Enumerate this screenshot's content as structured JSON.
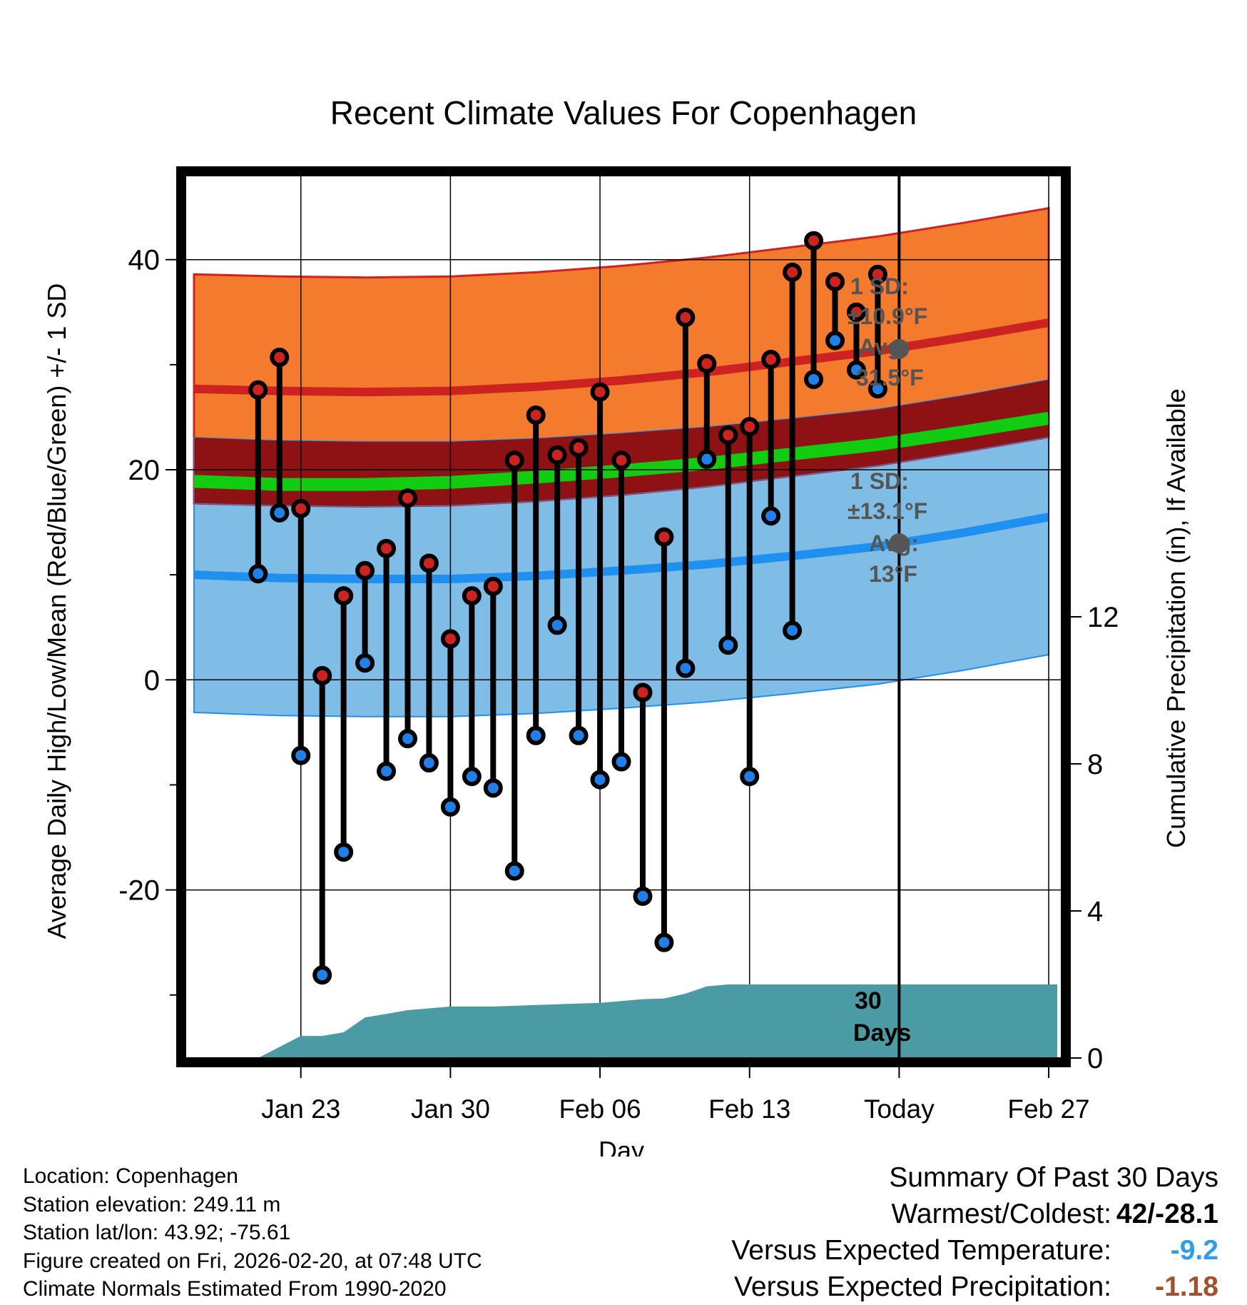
{
  "chart_data": {
    "type": "line",
    "title": "Recent Climate Values For Copenhagen",
    "xlabel": "Day",
    "ylabel": "Average Daily High/Low/Mean (Red/Blue/Green) +/- 1 SD",
    "y2label": "Cumulative Precipitation (in), If Available",
    "ylim": [
      -36,
      48
    ],
    "y2lim": [
      0,
      24
    ],
    "xlim": [
      -26.4,
      14.6
    ],
    "grid": true,
    "x_ticks": [
      {
        "x": -21,
        "label": "Jan 23"
      },
      {
        "x": -14,
        "label": "Jan 30"
      },
      {
        "x": -7,
        "label": "Feb 06"
      },
      {
        "x": 0,
        "label": "Feb 13"
      },
      {
        "x": 7,
        "label": "Today"
      },
      {
        "x": 14,
        "label": "Feb 27"
      }
    ],
    "y_ticks": [
      -20,
      0,
      20,
      40
    ],
    "y_minor_ticks": [
      -30,
      -10,
      10,
      30
    ],
    "y2_ticks": [
      0,
      4,
      8,
      12
    ],
    "today_x": 7,
    "normals": {
      "x": [
        -26,
        -22,
        -18,
        -14,
        -10,
        -6,
        -2,
        2,
        6,
        10,
        14
      ],
      "high_avg": [
        27.7,
        27.5,
        27.4,
        27.5,
        27.9,
        28.5,
        29.3,
        30.3,
        31.3,
        32.6,
        34.0
      ],
      "high_sd": 10.9,
      "low_avg": [
        10.0,
        9.7,
        9.6,
        9.6,
        9.9,
        10.4,
        11.0,
        11.8,
        12.7,
        14.0,
        15.5
      ],
      "low_sd": 13.1,
      "mean_avg": [
        18.9,
        18.6,
        18.6,
        18.8,
        19.3,
        19.9,
        20.6,
        21.5,
        22.4,
        23.6,
        24.9
      ]
    },
    "series": [
      {
        "name": "High",
        "color": "#cc2222",
        "values": [
          27.6,
          30.7,
          16.3,
          0.4,
          8.0,
          10.4,
          12.5,
          17.3,
          11.1,
          3.9,
          8.0,
          8.9,
          20.9,
          25.2,
          21.4,
          22.1,
          27.4,
          20.9,
          -1.2,
          13.6,
          34.5,
          30.1,
          23.3,
          24.1,
          30.5,
          38.8,
          41.8,
          37.9,
          35.0,
          38.6
        ]
      },
      {
        "name": "Low",
        "color": "#2080e8",
        "values": [
          10.1,
          15.9,
          -7.2,
          -28.1,
          -16.4,
          1.6,
          -8.7,
          -5.6,
          -7.9,
          -12.1,
          -9.2,
          -10.3,
          -18.2,
          -5.3,
          5.2,
          -5.3,
          -9.5,
          -7.8,
          -20.6,
          -25.0,
          1.1,
          21.0,
          3.3,
          -9.2,
          15.6,
          4.7,
          28.6,
          32.3,
          29.5,
          27.7
        ]
      }
    ],
    "days_x_start": -23,
    "precipitation": {
      "x": [
        -23,
        -22,
        -21,
        -20,
        -19,
        -18,
        -17,
        -16,
        -15,
        -14,
        -13,
        -12,
        -11,
        -10,
        -9,
        -8,
        -7,
        -6,
        -5,
        -4,
        -3,
        -2,
        -1,
        0,
        1,
        2,
        3,
        4,
        5,
        6,
        7,
        14.4
      ],
      "values": [
        0,
        0.3,
        0.6,
        0.6,
        0.7,
        1.1,
        1.2,
        1.3,
        1.35,
        1.4,
        1.4,
        1.4,
        1.42,
        1.44,
        1.46,
        1.48,
        1.5,
        1.55,
        1.6,
        1.62,
        1.75,
        1.95,
        2.0,
        2.0,
        2.0,
        2.0,
        2.0,
        2.0,
        2.0,
        2.0,
        2.0,
        2.0
      ]
    },
    "annotations": {
      "high_sd_line1": "1 SD:",
      "high_sd_line2": "±10.9°F",
      "high_avg_line1": "Avg:",
      "high_avg_line2": "31.5°F",
      "low_sd_line1": "1 SD:",
      "low_sd_line2": "±13.1°F",
      "low_avg_line1": "Avg:",
      "low_avg_line2": "13°F",
      "today_high_avg": 31.5,
      "today_low_avg": 13,
      "days_line1": "30",
      "days_line2": "Days"
    }
  },
  "colors": {
    "high_band": "#f47a2e",
    "high_line": "#cc2222",
    "low_band": "#80bde6",
    "low_line": "#2090f0",
    "mean_band": "#8e1214",
    "mean_line": "#12cc12",
    "precip": "#4a9ba3",
    "annotation": "#555555",
    "summary_temp": "#2f9ee8",
    "summary_precip": "#a0522d"
  },
  "info": {
    "location": "Location: Copenhagen",
    "elevation": "Station elevation: 249.11 m",
    "latlon": "Station lat/lon: 43.92; -75.61",
    "created": "Figure created on Fri, 2026-02-20, at 07:48 UTC",
    "normals": "Climate Normals Estimated From 1990-2020"
  },
  "summary": {
    "heading": "Summary Of Past 30 Days",
    "warmest_label": "Warmest/Coldest:",
    "warmest_value": "42/-28.1",
    "temp_label": "Versus Expected Temperature:",
    "temp_value": "-9.2",
    "precip_label": "Versus Expected Precipitation:",
    "precip_value": "-1.18"
  }
}
